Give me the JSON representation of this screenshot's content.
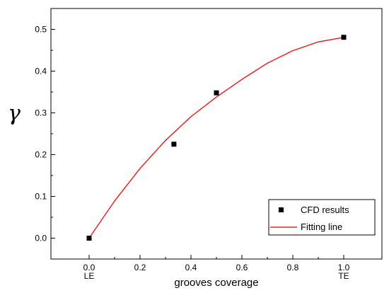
{
  "chart_data": {
    "type": "scatter",
    "title": "",
    "xlabel": "grooves coverage",
    "ylabel": "γ",
    "xlim": [
      -0.15,
      1.15
    ],
    "ylim": [
      -0.05,
      0.55
    ],
    "x_ticks": [
      0.0,
      0.2,
      0.4,
      0.6,
      0.8,
      1.0
    ],
    "x_tick_labels": [
      "0.0",
      "0.2",
      "0.4",
      "0.6",
      "0.8",
      "1.0"
    ],
    "x_sub_labels": [
      {
        "x": 0.0,
        "label": "LE"
      },
      {
        "x": 1.0,
        "label": "TE"
      }
    ],
    "y_ticks": [
      0.0,
      0.1,
      0.2,
      0.3,
      0.4,
      0.5
    ],
    "y_tick_labels": [
      "0.0",
      "0.1",
      "0.2",
      "0.3",
      "0.4",
      "0.5"
    ],
    "legend_position": "bottom-right",
    "grid": false,
    "series": [
      {
        "name": "CFD results",
        "kind": "scatter",
        "marker": "square",
        "color": "#000000",
        "x": [
          0.0,
          0.333,
          0.5,
          1.0
        ],
        "y": [
          0.0,
          0.225,
          0.348,
          0.481
        ]
      },
      {
        "name": "Fitting line",
        "kind": "line",
        "color": "#e8261c",
        "x": [
          0.0,
          0.1,
          0.2,
          0.3,
          0.4,
          0.5,
          0.6,
          0.7,
          0.8,
          0.9,
          1.0
        ],
        "y": [
          0.0,
          0.089,
          0.167,
          0.234,
          0.291,
          0.338,
          0.38,
          0.419,
          0.449,
          0.47,
          0.481
        ]
      }
    ]
  }
}
